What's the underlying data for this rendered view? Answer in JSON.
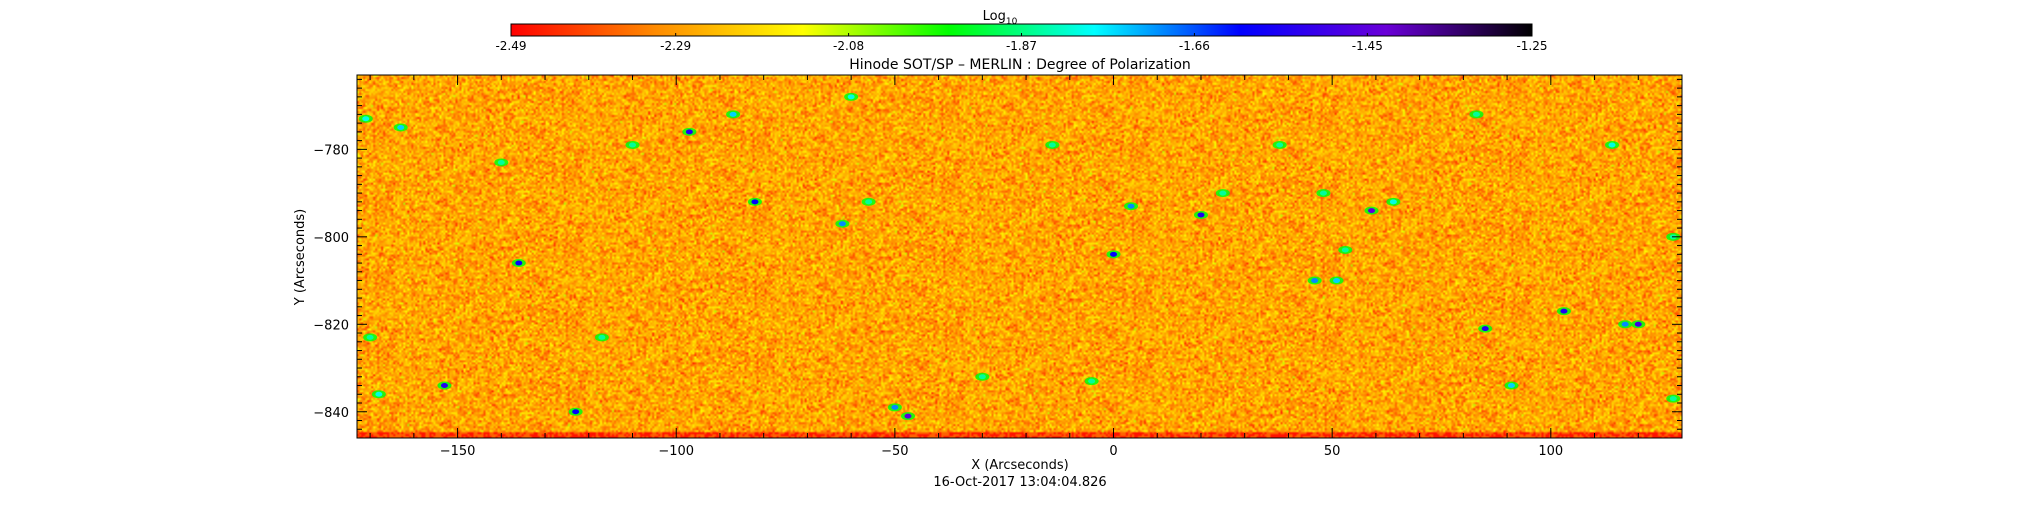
{
  "chart_data": {
    "type": "heatmap",
    "title": "Hinode SOT/SP – MERLIN : Degree of Polarization",
    "xlabel": "X (Arcseconds)",
    "ylabel": "Y (Arcseconds)",
    "xlim": [
      -173,
      130
    ],
    "ylim": [
      -846,
      -763
    ],
    "x_ticks": [
      -150,
      -100,
      -50,
      0,
      50,
      100
    ],
    "y_ticks": [
      -780,
      -800,
      -820,
      -840
    ],
    "timestamp": "16-Oct-2017 13:04:04.826",
    "colorbar": {
      "label_main": "Log",
      "label_sub": "10",
      "ticks": [
        -2.49,
        -2.29,
        -2.08,
        -1.87,
        -1.66,
        -1.45,
        -1.25
      ],
      "tick_labels": [
        "-2.49",
        "-2.29",
        "-2.08",
        "-1.87",
        "-1.66",
        "-1.45",
        "-1.25"
      ],
      "range": [
        -2.49,
        -1.25
      ],
      "colormap": [
        "#ff0000",
        "#ff8c00",
        "#ffff00",
        "#00ff00",
        "#00ffff",
        "#0000ff",
        "#6a00d8",
        "#000000"
      ]
    },
    "background_level": -2.27,
    "features": [
      {
        "x": -97,
        "y": -776,
        "v": -1.55
      },
      {
        "x": -87,
        "y": -772,
        "v": -1.75
      },
      {
        "x": -60,
        "y": -768,
        "v": -1.8
      },
      {
        "x": -171,
        "y": -773,
        "v": -1.8
      },
      {
        "x": -163,
        "y": -775,
        "v": -1.75
      },
      {
        "x": -110,
        "y": -779,
        "v": -1.85
      },
      {
        "x": -82,
        "y": -792,
        "v": -1.6
      },
      {
        "x": -62,
        "y": -797,
        "v": -1.7
      },
      {
        "x": -56,
        "y": -792,
        "v": -1.85
      },
      {
        "x": 4,
        "y": -793,
        "v": -1.7
      },
      {
        "x": 20,
        "y": -795,
        "v": -1.55
      },
      {
        "x": 25,
        "y": -790,
        "v": -1.85
      },
      {
        "x": 59,
        "y": -794,
        "v": -1.45
      },
      {
        "x": 64,
        "y": -792,
        "v": -1.8
      },
      {
        "x": 48,
        "y": -790,
        "v": -1.85
      },
      {
        "x": 0,
        "y": -804,
        "v": -1.6
      },
      {
        "x": -136,
        "y": -806,
        "v": -1.6
      },
      {
        "x": 53,
        "y": -803,
        "v": -1.85
      },
      {
        "x": 46,
        "y": -810,
        "v": -1.7
      },
      {
        "x": 51,
        "y": -810,
        "v": -1.75
      },
      {
        "x": 103,
        "y": -817,
        "v": -1.55
      },
      {
        "x": 85,
        "y": -821,
        "v": -1.55
      },
      {
        "x": 120,
        "y": -820,
        "v": -1.5
      },
      {
        "x": 117,
        "y": -820,
        "v": -1.7
      },
      {
        "x": -117,
        "y": -823,
        "v": -1.85
      },
      {
        "x": -170,
        "y": -823,
        "v": -1.85
      },
      {
        "x": -168,
        "y": -836,
        "v": -1.8
      },
      {
        "x": -153,
        "y": -834,
        "v": -1.55
      },
      {
        "x": -123,
        "y": -840,
        "v": -1.6
      },
      {
        "x": -47,
        "y": -841,
        "v": -1.45
      },
      {
        "x": -50,
        "y": -839,
        "v": -1.7
      },
      {
        "x": -30,
        "y": -832,
        "v": -1.85
      },
      {
        "x": 91,
        "y": -834,
        "v": -1.75
      },
      {
        "x": 128,
        "y": -837,
        "v": -1.85
      },
      {
        "x": -5,
        "y": -833,
        "v": -1.85
      },
      {
        "x": -140,
        "y": -783,
        "v": -1.85
      },
      {
        "x": 38,
        "y": -779,
        "v": -1.85
      },
      {
        "x": 83,
        "y": -772,
        "v": -1.85
      },
      {
        "x": 114,
        "y": -779,
        "v": -1.8
      },
      {
        "x": -14,
        "y": -779,
        "v": -1.85
      },
      {
        "x": 128,
        "y": -800,
        "v": -1.85
      }
    ]
  }
}
